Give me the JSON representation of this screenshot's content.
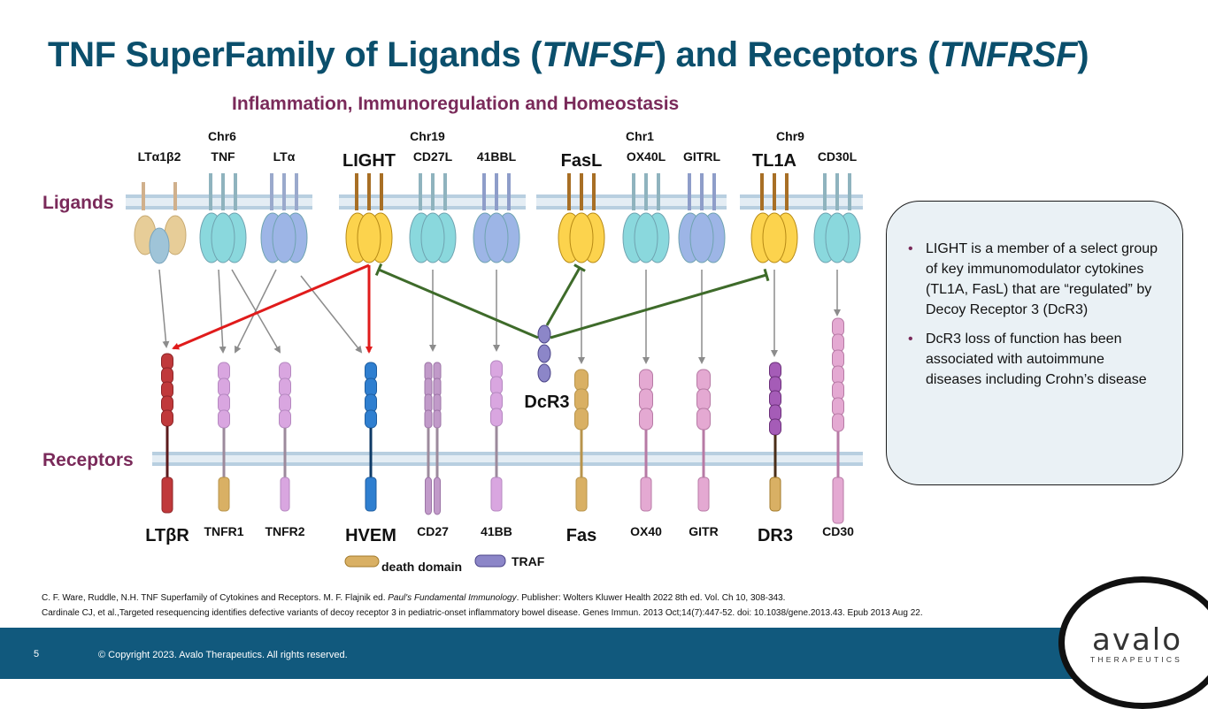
{
  "slide": {
    "title_a": "TNF SuperFamily of Ligands (",
    "title_b": "TNFSF",
    "title_c": ") and Receptors (",
    "title_d": "TNFRSF",
    "title_e": ")",
    "subtitle": "Inflammation, Immunoregulation and Homeostasis",
    "ligands_label": "Ligands",
    "receptors_label": "Receptors"
  },
  "diagram": {
    "chromosomes": [
      "Chr6",
      "Chr19",
      "Chr1",
      "Chr9"
    ],
    "ligands": [
      "LTα1β2",
      "TNF",
      "LTα",
      "LIGHT",
      "CD27L",
      "41BBL",
      "FasL",
      "OX40L",
      "GITRL",
      "TL1A",
      "CD30L"
    ],
    "receptors": [
      "LTβR",
      "TNFR1",
      "TNFR2",
      "HVEM",
      "CD27",
      "41BB",
      "Fas",
      "OX40",
      "GITR",
      "DR3",
      "CD30"
    ],
    "decoy": "DcR3",
    "legend": {
      "death_domain": "death domain",
      "traf": "TRAF"
    },
    "colors": {
      "ligand_tan": "#e7cd98",
      "ligand_steelblue": "#9fc4d8",
      "ligand_teal": "#8ad8dd",
      "ligand_blue": "#9db5e6",
      "ligand_yellow": "#fcd34d",
      "receptor_red": "#c0393b",
      "receptor_lilac": "#d9a6e0",
      "receptor_blue": "#2f7fd0",
      "receptor_mauve": "#c19ac9",
      "receptor_pink": "#e4a9d2",
      "receptor_purple": "#a55cb7",
      "decoy_purple": "#8c86c8",
      "death_domain": "#d9b064",
      "membrane": "#b8cfe0",
      "arrow_red": "#e01b1b",
      "arrow_green": "#3e6b2a",
      "arrow_grey": "#8c8c8c"
    }
  },
  "callout": {
    "bullets": [
      "LIGHT is a member of a select group of key immunomodulator cytokines (TL1A, FasL)  that are “regulated” by Decoy Receptor 3 (DcR3)",
      "DcR3 loss of function has been associated with autoimmune diseases including Crohn’s disease"
    ]
  },
  "references": {
    "ref1_a": "C. F. Ware, Ruddle, N.H. TNF Superfamily of Cytokines and Receptors. M. F. Flajnik ed. ",
    "ref1_b": "Paul's Fundamental Immunology",
    "ref1_c": ". Publisher: Wolters Kluwer Health 2022 8th ed. Vol. Ch 10,  308-343.",
    "ref2": "Cardinale CJ, et al.,Targeted resequencing identifies defective variants of decoy receptor 3 in pediatric-onset inflammatory bowel disease. Genes Immun. 2013 Oct;14(7):447-52. doi: 10.1038/gene.2013.43. Epub 2013 Aug 22."
  },
  "footer": {
    "page_number": "5",
    "copyright": "© Copyright 2023. Avalo Therapeutics. All rights reserved."
  },
  "logo": {
    "word": "avalo",
    "sub": "THERAPEUTICS"
  }
}
